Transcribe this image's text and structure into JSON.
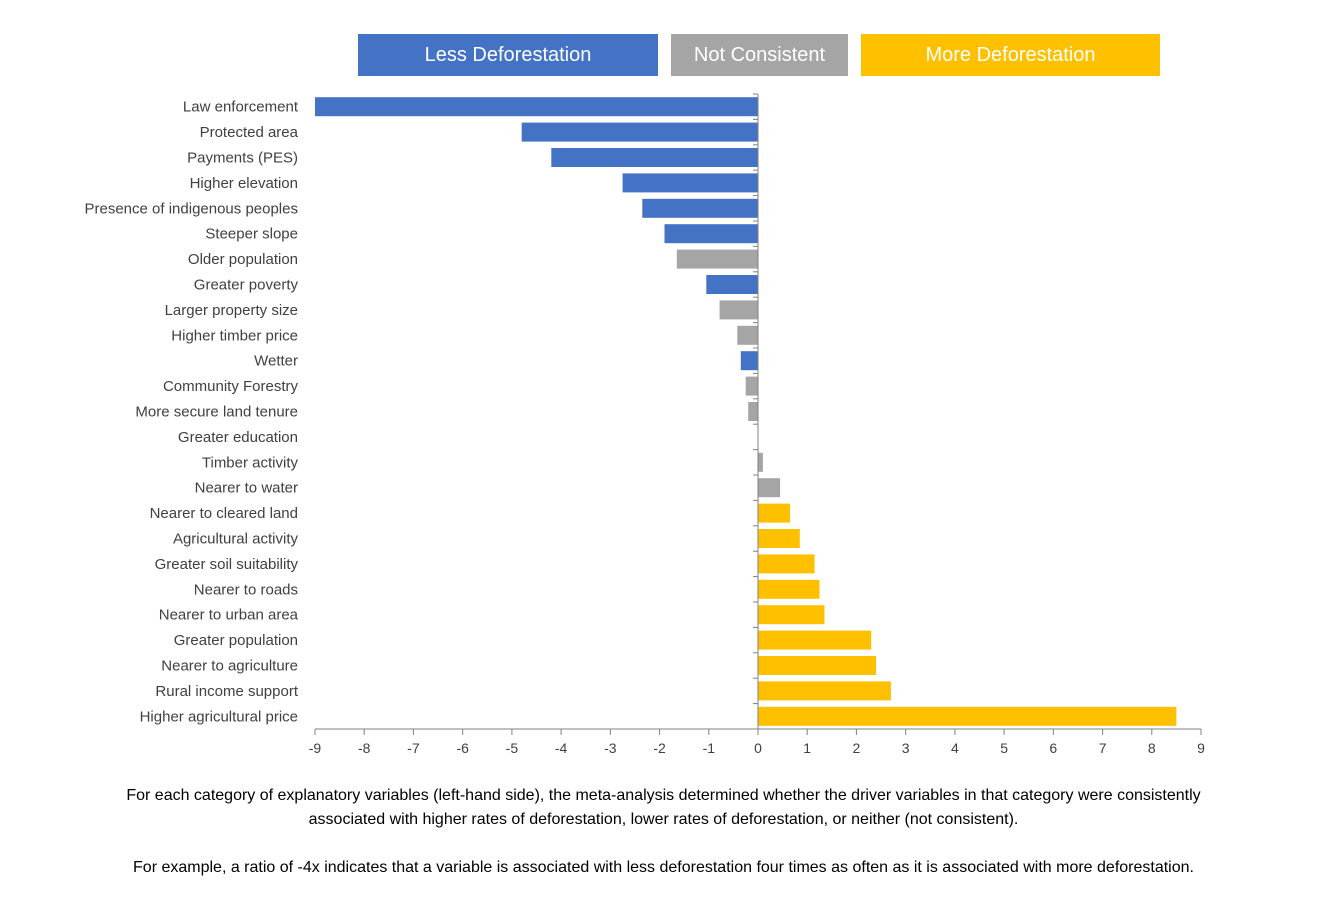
{
  "legend": [
    {
      "label": "Less Deforestation",
      "color": "#4472C4"
    },
    {
      "label": "Not Consistent",
      "color": "#A5A5A5"
    },
    {
      "label": "More Deforestation",
      "color": "#FFC000"
    }
  ],
  "chart_data": {
    "type": "bar",
    "orientation": "horizontal",
    "xlim": [
      -9,
      9
    ],
    "xticks": [
      -9,
      -8,
      -7,
      -6,
      -5,
      -4,
      -3,
      -2,
      -1,
      0,
      1,
      2,
      3,
      4,
      5,
      6,
      7,
      8,
      9
    ],
    "grid": false,
    "legend_position": "top",
    "categories": [
      "Law enforcement",
      "Protected area",
      "Payments (PES)",
      "Higher elevation",
      "Presence of indigenous peoples",
      "Steeper slope",
      "Older population",
      "Greater poverty",
      "Larger property size",
      "Higher timber price",
      "Wetter",
      "Community Forestry",
      "More secure land tenure",
      "Greater education",
      "Timber activity",
      "Nearer to water",
      "Nearer to cleared land",
      "Agricultural activity",
      "Greater soil suitability",
      "Nearer to roads",
      "Nearer to urban area",
      "Greater population",
      "Nearer to agriculture",
      "Rural income support",
      "Higher agricultural price"
    ],
    "values": [
      -9,
      -4.8,
      -4.2,
      -2.75,
      -2.35,
      -1.9,
      -1.65,
      -1.05,
      -0.78,
      -0.42,
      -0.35,
      -0.25,
      -0.2,
      0,
      0.1,
      0.45,
      0.65,
      0.85,
      1.15,
      1.25,
      1.35,
      2.3,
      2.4,
      2.7,
      8.5
    ],
    "groups": [
      "Less Deforestation",
      "Less Deforestation",
      "Less Deforestation",
      "Less Deforestation",
      "Less Deforestation",
      "Less Deforestation",
      "Not Consistent",
      "Less Deforestation",
      "Not Consistent",
      "Not Consistent",
      "Less Deforestation",
      "Not Consistent",
      "Not Consistent",
      "Not Consistent",
      "Not Consistent",
      "Not Consistent",
      "More Deforestation",
      "More Deforestation",
      "More Deforestation",
      "More Deforestation",
      "More Deforestation",
      "More Deforestation",
      "More Deforestation",
      "More Deforestation",
      "More Deforestation"
    ]
  },
  "captions": {
    "line1": "For each category of explanatory variables (left-hand side), the meta-analysis determined whether the driver variables in that category were consistently",
    "line2": "associated with higher rates of deforestation, lower rates of deforestation, or neither (not consistent).",
    "line3": "For example, a ratio of -4x indicates that a variable is associated with less deforestation four times as often as it is associated with more deforestation."
  }
}
